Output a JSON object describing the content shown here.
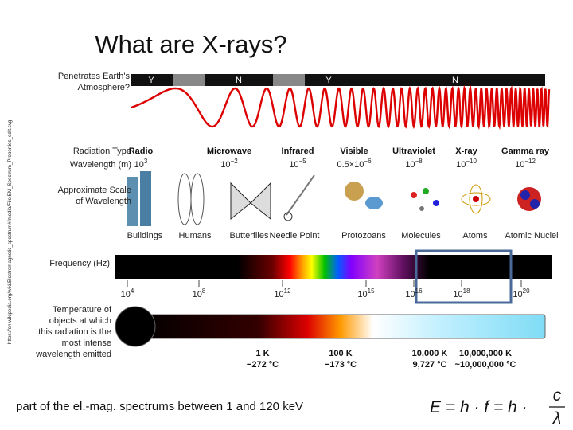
{
  "title": "What are X-rays?",
  "source_url": "https://en.wikipedia.org/wiki/Electromagnetic_spectrum#/media/File:EM_Spectrum_Properties_edit.svg",
  "figure": {
    "atmosphere_label": [
      "Penetrates Earth's",
      "Atmosphere?"
    ],
    "atmosphere_bar": [
      "Y",
      "N",
      "Y",
      "N"
    ],
    "radiation_type_label": "Radiation Type",
    "wavelength_label": "Wavelength (m)",
    "radiation_types": [
      {
        "name": "Radio",
        "wavelength": {
          "base": "10",
          "exp": "3"
        }
      },
      {
        "name": "Microwave",
        "wavelength": {
          "base": "10",
          "exp": "−2"
        }
      },
      {
        "name": "Infrared",
        "wavelength": {
          "base": "10",
          "exp": "−5"
        }
      },
      {
        "name": "Visible",
        "wavelength": {
          "base": "0.5×10",
          "exp": "−6"
        }
      },
      {
        "name": "Ultraviolet",
        "wavelength": {
          "base": "10",
          "exp": "−8"
        }
      },
      {
        "name": "X-ray",
        "wavelength": {
          "base": "10",
          "exp": "−10"
        }
      },
      {
        "name": "Gamma ray",
        "wavelength": {
          "base": "10",
          "exp": "−12"
        }
      }
    ],
    "scale_label": [
      "Approximate Scale",
      "of Wavelength"
    ],
    "scale_objects": [
      "Buildings",
      "Humans",
      "Butterflies",
      "Needle Point",
      "Protozoans",
      "Molecules",
      "Atoms",
      "Atomic Nuclei"
    ],
    "frequency_label": "Frequency (Hz)",
    "frequency_ticks": [
      {
        "base": "10",
        "exp": "4"
      },
      {
        "base": "10",
        "exp": "8"
      },
      {
        "base": "10",
        "exp": "12"
      },
      {
        "base": "10",
        "exp": "15"
      },
      {
        "base": "10",
        "exp": "16"
      },
      {
        "base": "10",
        "exp": "18"
      },
      {
        "base": "10",
        "exp": "20"
      }
    ],
    "temperature_label": [
      "Temperature of",
      "objects at which",
      "this radiation is the",
      "most intense",
      "wavelength emitted"
    ],
    "temperatures": [
      {
        "kelvin": "1 K",
        "celsius": "−272 °C"
      },
      {
        "kelvin": "100 K",
        "celsius": "−173 °C"
      },
      {
        "kelvin": "10,000 K",
        "celsius": "9,727 °C"
      },
      {
        "kelvin": "10,000,000 K",
        "celsius": "~10,000,000 °C"
      }
    ]
  },
  "caption": "part of the el.-mag. spectrums between 1 and 120 keV",
  "formula": {
    "lhs": "E = h · f = h ·",
    "numerator": "c",
    "denominator": "λ"
  }
}
